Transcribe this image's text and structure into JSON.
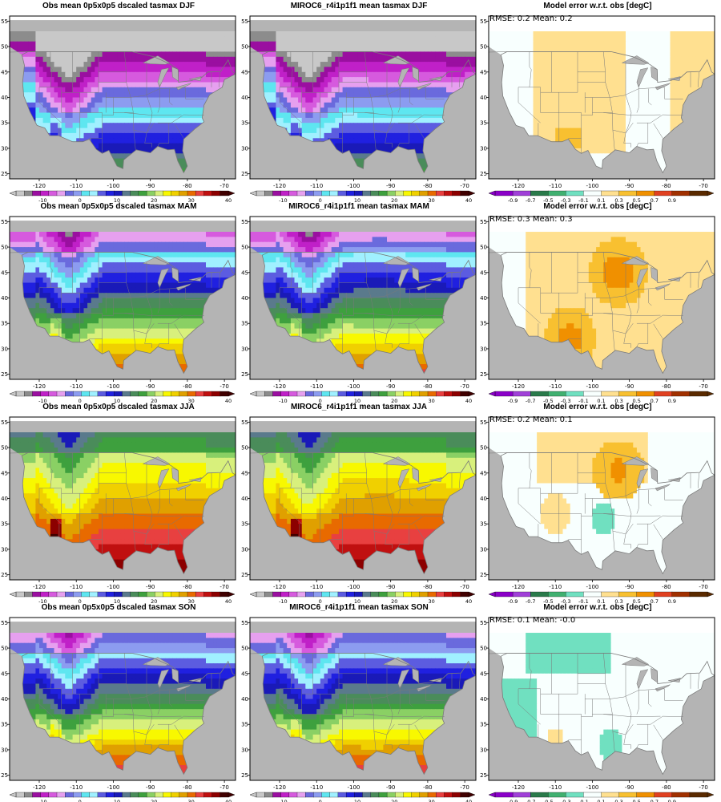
{
  "obs_title_prefix": "Obs mean 0p5x0p5 dscaled tasmax",
  "model_title_prefix": "MIROC6_r4i1p1f1 mean tasmax",
  "err_title": "Model error w.r.t. obs [degC]",
  "lon_ticks": [
    "-120",
    "-110",
    "-100",
    "-90",
    "-80",
    "-70"
  ],
  "lat_ticks": [
    "55",
    "50",
    "45",
    "40",
    "35",
    "30",
    "25"
  ],
  "cbar_temp_labels": [
    "-10",
    "0",
    "10",
    "20",
    "30",
    "40"
  ],
  "cbar_err_labels": [
    "-0.9",
    "-0.7",
    "-0.5",
    "-0.3",
    "-0.1",
    "0.1",
    "0.3",
    "0.5",
    "0.7",
    "0.9"
  ],
  "rows": [
    {
      "season": "DJF",
      "err_stats": "RMSE: 0.2  Mean: 0.2"
    },
    {
      "season": "MAM",
      "err_stats": "RMSE: 0.3  Mean: 0.3"
    },
    {
      "season": "JJA",
      "err_stats": "RMSE: 0.2  Mean: 0.1"
    },
    {
      "season": "SON",
      "err_stats": "RMSE: 0.1  Mean: -0.0"
    }
  ],
  "colors": {
    "temp_scale": [
      "#c8c8c8",
      "#8c8c8c",
      "#9a0fa0",
      "#c020c8",
      "#d65ade",
      "#e6a0ef",
      "#6a6add",
      "#8c9cf0",
      "#5ee6f0",
      "#a0f0ff",
      "#5c5ce0",
      "#2020e0",
      "#1a1ab8",
      "#5a7a8c",
      "#4a8c5a",
      "#3ea03e",
      "#8ad064",
      "#d8f07c",
      "#f8f800",
      "#f0d000",
      "#e0a000",
      "#e86a00",
      "#e84040",
      "#c01010",
      "#8c0000",
      "#400000"
    ],
    "err_scale": [
      "#8a00c8",
      "#a040d8",
      "#2a7a4a",
      "#40b070",
      "#70e0c0",
      "#f8fffe",
      "#ffe090",
      "#f8c030",
      "#f09000",
      "#e04020",
      "#a03000",
      "#5a2a00"
    ],
    "land_outline": "#7a7a7a",
    "mask_grey": "#b4b4b4"
  }
}
